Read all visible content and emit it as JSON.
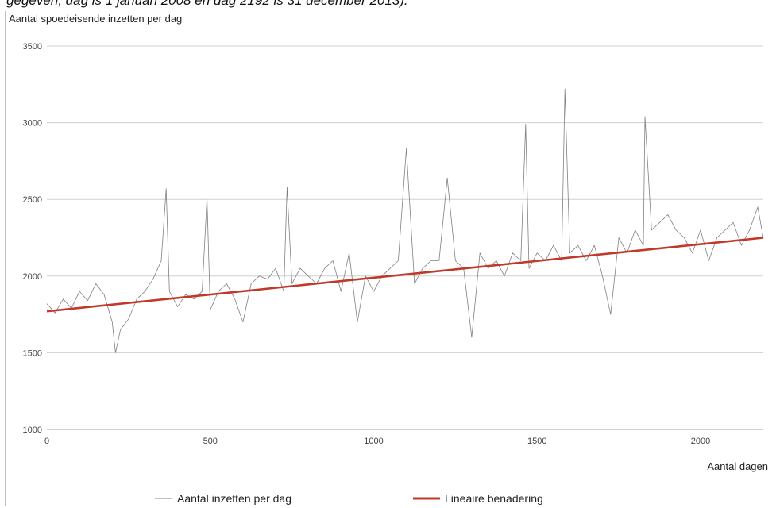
{
  "caption": "gegeven, dag is 1 januari 2008 en dag 2192 is 31 december 2013).",
  "chart_data": {
    "type": "line",
    "title": "",
    "ylabel": "Aantal spoedeisende inzetten per dag",
    "xlabel": "Aantal dagen",
    "xlim": [
      0,
      2192
    ],
    "ylim": [
      1000,
      3500
    ],
    "xticks": [
      0,
      500,
      1000,
      1500,
      2000
    ],
    "yticks": [
      1000,
      1500,
      2000,
      2500,
      3000,
      3500
    ],
    "grid": "horizontal",
    "legend_position": "bottom",
    "series": [
      {
        "name": "Aantal inzetten per dag",
        "color": "#808080",
        "x": [
          0,
          25,
          50,
          75,
          100,
          125,
          150,
          175,
          200,
          210,
          225,
          250,
          275,
          300,
          325,
          350,
          365,
          375,
          400,
          425,
          450,
          475,
          490,
          500,
          525,
          550,
          575,
          600,
          625,
          650,
          675,
          700,
          725,
          735,
          750,
          775,
          800,
          825,
          850,
          875,
          900,
          925,
          950,
          975,
          1000,
          1025,
          1050,
          1075,
          1100,
          1125,
          1150,
          1175,
          1200,
          1225,
          1250,
          1275,
          1300,
          1325,
          1350,
          1375,
          1400,
          1425,
          1450,
          1465,
          1475,
          1500,
          1525,
          1550,
          1575,
          1585,
          1600,
          1625,
          1650,
          1675,
          1700,
          1725,
          1750,
          1775,
          1800,
          1825,
          1830,
          1850,
          1875,
          1900,
          1925,
          1950,
          1975,
          2000,
          2025,
          2050,
          2075,
          2100,
          2125,
          2150,
          2175,
          2192
        ],
        "y": [
          1820,
          1760,
          1850,
          1790,
          1900,
          1840,
          1950,
          1880,
          1700,
          1500,
          1650,
          1720,
          1850,
          1900,
          1980,
          2100,
          2570,
          1900,
          1800,
          1880,
          1850,
          1900,
          2510,
          1780,
          1900,
          1950,
          1850,
          1700,
          1950,
          2000,
          1980,
          2050,
          1900,
          2580,
          1950,
          2050,
          2000,
          1950,
          2050,
          2100,
          1900,
          2150,
          1700,
          2000,
          1900,
          2000,
          2050,
          2100,
          2830,
          1950,
          2050,
          2100,
          2100,
          2640,
          2100,
          2050,
          1600,
          2150,
          2050,
          2100,
          2000,
          2150,
          2100,
          2990,
          2050,
          2150,
          2100,
          2200,
          2100,
          3220,
          2150,
          2200,
          2100,
          2200,
          2000,
          1750,
          2250,
          2150,
          2300,
          2200,
          3040,
          2300,
          2350,
          2400,
          2300,
          2250,
          2150,
          2300,
          2100,
          2250,
          2300,
          2350,
          2200,
          2300,
          2450,
          2250
        ]
      },
      {
        "name": "Lineaire benadering",
        "color": "#c0392b",
        "x": [
          0,
          2192
        ],
        "y": [
          1770,
          2250
        ]
      }
    ]
  }
}
